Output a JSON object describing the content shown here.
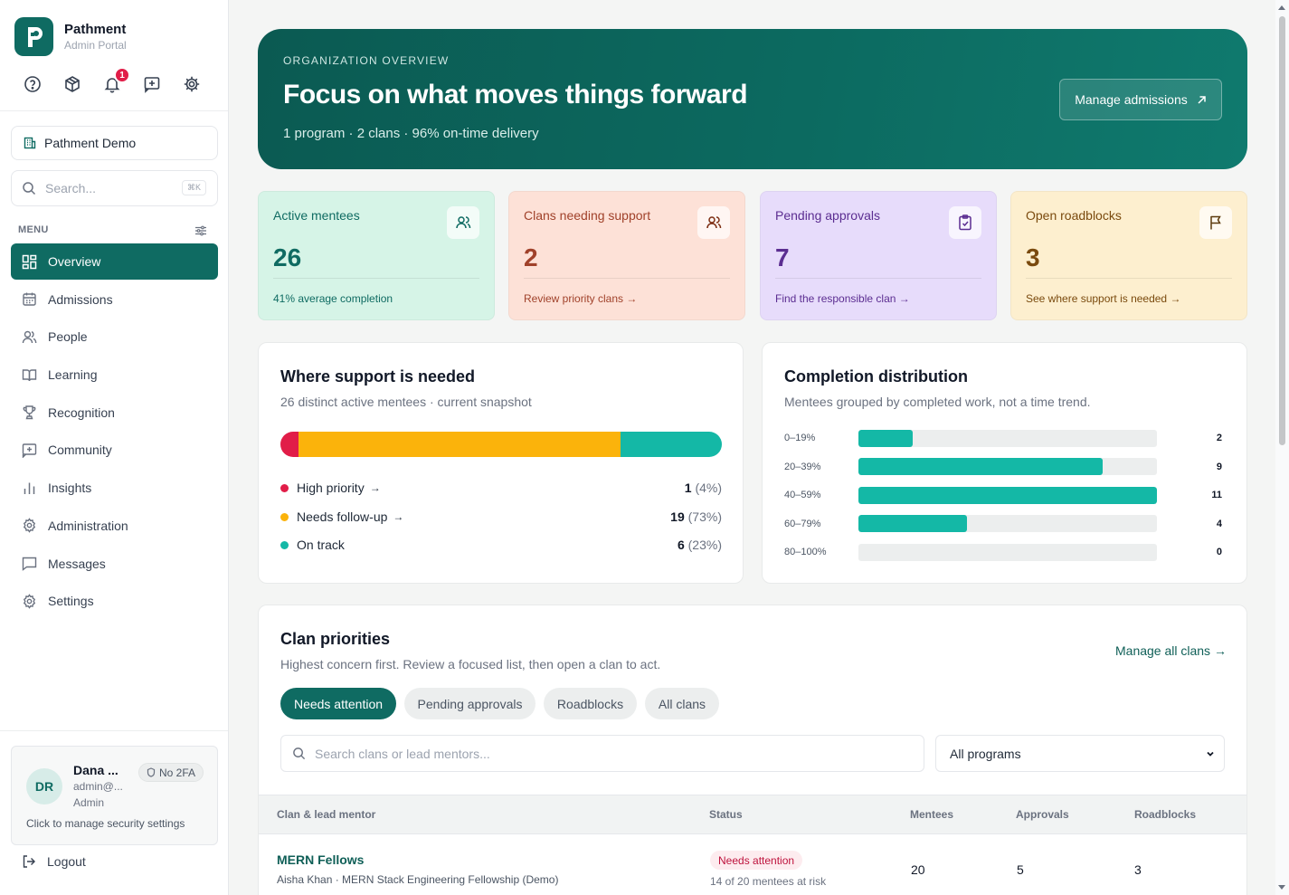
{
  "brand": {
    "name": "Pathment",
    "subtitle": "Admin Portal",
    "notifications": "1"
  },
  "sidebar": {
    "org": "Pathment Demo",
    "search_placeholder": "Search...",
    "search_shortcut": "⌘K",
    "menu_label": "MENU",
    "items": [
      {
        "label": "Overview",
        "icon": "grid-icon",
        "active": true
      },
      {
        "label": "Admissions",
        "icon": "calendar-icon"
      },
      {
        "label": "People",
        "icon": "users-icon"
      },
      {
        "label": "Learning",
        "icon": "book-icon"
      },
      {
        "label": "Recognition",
        "icon": "trophy-icon"
      },
      {
        "label": "Community",
        "icon": "message-plus-icon"
      },
      {
        "label": "Insights",
        "icon": "bar-chart-icon"
      },
      {
        "label": "Administration",
        "icon": "gear-icon"
      },
      {
        "label": "Messages",
        "icon": "chat-icon"
      },
      {
        "label": "Settings",
        "icon": "settings-icon"
      }
    ],
    "user": {
      "initials": "DR",
      "name": "Dana ...",
      "email": "admin@...",
      "role": "Admin",
      "twofa": "No 2FA",
      "hint": "Click to manage security settings"
    },
    "logout": "Logout"
  },
  "hero": {
    "eyebrow": "ORGANIZATION OVERVIEW",
    "title": "Focus on what moves things forward",
    "subtitle": "1 program · 2 clans · 96% on-time delivery",
    "button": "Manage admissions"
  },
  "stats": [
    {
      "title": "Active mentees",
      "value": "26",
      "footer": "41% average completion",
      "bg": "#d6f4e7",
      "color": "#0f6b62",
      "icon": "users-icon"
    },
    {
      "title": "Clans needing support",
      "value": "2",
      "footer": "Review priority clans →",
      "bg": "#fde1d7",
      "color": "#a0412a",
      "icon": "users-icon"
    },
    {
      "title": "Pending approvals",
      "value": "7",
      "footer": "Find the responsible clan →",
      "bg": "#e7dcfb",
      "color": "#5b2d91",
      "icon": "clipboard-check-icon"
    },
    {
      "title": "Open roadblocks",
      "value": "3",
      "footer": "See where support is needed →",
      "bg": "#fdefcf",
      "color": "#7a4a0e",
      "icon": "flag-icon"
    }
  ],
  "support": {
    "title": "Where support is needed",
    "subtitle": "26 distinct active mentees · current snapshot",
    "segments": [
      {
        "label": "High priority",
        "arrow": "→",
        "count": "1",
        "pct": "(4%)",
        "share": 4,
        "color": "#e11d48"
      },
      {
        "label": "Needs follow-up",
        "arrow": "→",
        "count": "19",
        "pct": "(73%)",
        "share": 73,
        "color": "#fbb30b"
      },
      {
        "label": "On track",
        "arrow": "",
        "count": "6",
        "pct": "(23%)",
        "share": 23,
        "color": "#14b8a6"
      }
    ]
  },
  "distribution": {
    "title": "Completion distribution",
    "subtitle": "Mentees grouped by completed work, not a time trend.",
    "chart_data": {
      "type": "bar",
      "categories": [
        "0–19%",
        "20–39%",
        "40–59%",
        "60–79%",
        "80–100%"
      ],
      "values": [
        2,
        9,
        11,
        4,
        0
      ],
      "color": "#14b8a6"
    }
  },
  "clans": {
    "title": "Clan priorities",
    "subtitle": "Highest concern first. Review a focused list, then open a clan to act.",
    "manage_link": "Manage all clans →",
    "filters": [
      "Needs attention",
      "Pending approvals",
      "Roadblocks",
      "All clans"
    ],
    "search_placeholder": "Search clans or lead mentors...",
    "program_select": "All programs",
    "columns": [
      "Clan & lead mentor",
      "Status",
      "Mentees",
      "Approvals",
      "Roadblocks"
    ],
    "rows": [
      {
        "name": "MERN Fellows",
        "mentor": "Aisha Khan · MERN Stack Engineering Fellowship (Demo)",
        "status": "Needs attention",
        "status_note": "14 of 20 mentees at risk",
        "mentees": "20",
        "approvals": "5",
        "roadblocks": "3"
      }
    ]
  }
}
